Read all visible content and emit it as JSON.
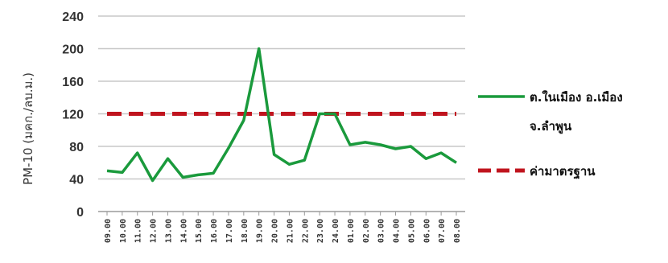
{
  "chart_data": {
    "type": "line",
    "title": "",
    "xlabel": "",
    "ylabel": "PM-10 (มคก./ลบ.ม.)",
    "ylim": [
      0,
      240
    ],
    "yticks": [
      0,
      40,
      80,
      120,
      160,
      200,
      240
    ],
    "grid": true,
    "legend_position": "right",
    "categories": [
      "09.00",
      "10.00",
      "11.00",
      "12.00",
      "13.00",
      "14.00",
      "15.00",
      "16.00",
      "17.00",
      "18.00",
      "19.00",
      "20.00",
      "21.00",
      "22.00",
      "23.00",
      "24.00",
      "01.00",
      "02.00",
      "03.00",
      "04.00",
      "05.00",
      "06.00",
      "07.00",
      "08.00"
    ],
    "series": [
      {
        "name": "ต.ในเมือง อ.เมือง จ.ลำพูน",
        "name_lines": [
          "ต.ในเมือง อ.เมือง",
          "จ.ลำพูน"
        ],
        "color": "#1a9a3c",
        "style": "solid",
        "values": [
          50,
          48,
          72,
          38,
          65,
          42,
          45,
          47,
          78,
          112,
          200,
          70,
          58,
          63,
          120,
          120,
          82,
          85,
          82,
          77,
          80,
          65,
          72,
          60
        ]
      },
      {
        "name": "ค่ามาตรฐาน",
        "name_lines": [
          "ค่ามาตรฐาน"
        ],
        "color": "#c0141e",
        "style": "dashed",
        "values": [
          120,
          120,
          120,
          120,
          120,
          120,
          120,
          120,
          120,
          120,
          120,
          120,
          120,
          120,
          120,
          120,
          120,
          120,
          120,
          120,
          120,
          120,
          120,
          120
        ]
      }
    ]
  }
}
